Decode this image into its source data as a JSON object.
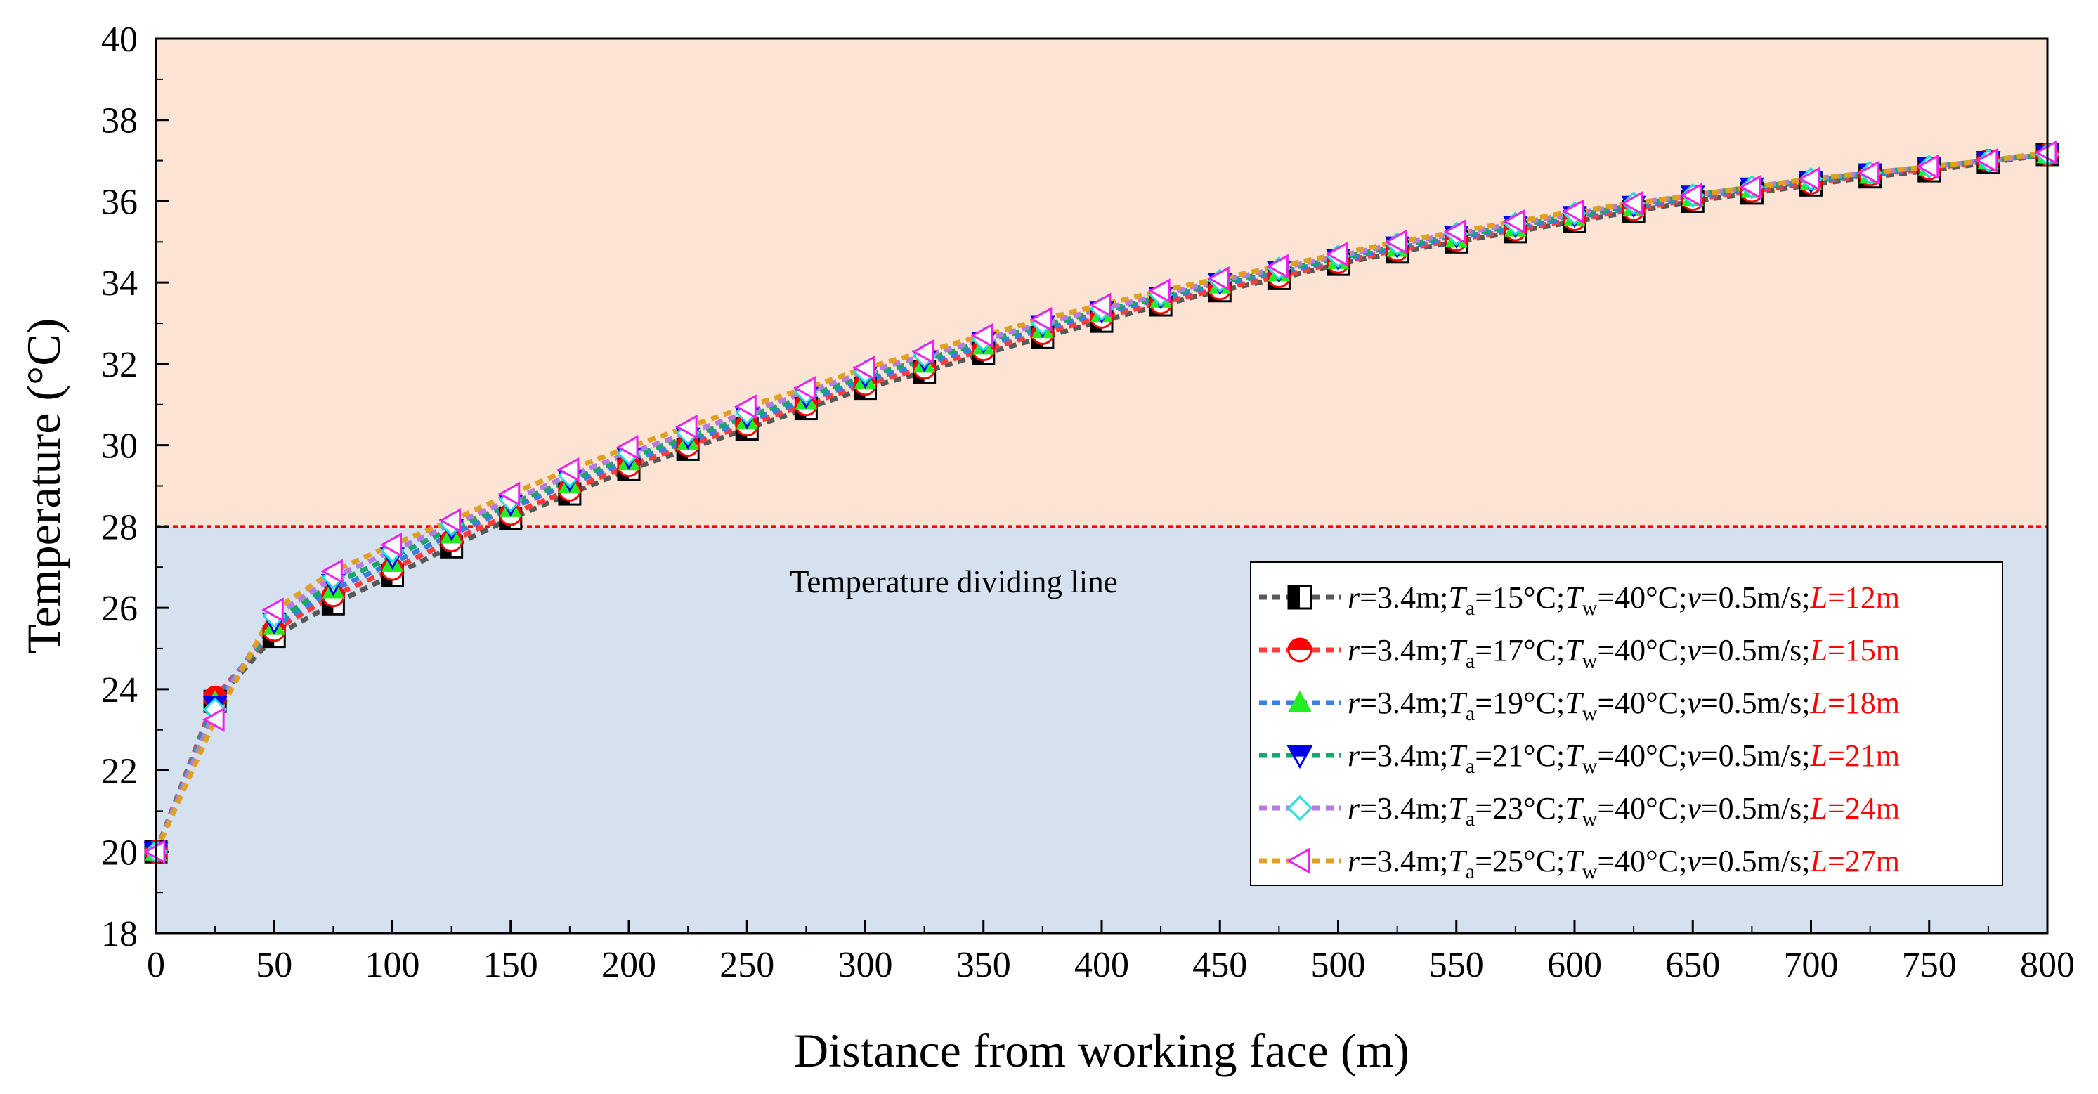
{
  "chart_data": {
    "type": "line",
    "xlabel": "Distance from working face (m)",
    "ylabel": "Temperature (°C)",
    "xlim": [
      0,
      800
    ],
    "ylim": [
      18,
      40
    ],
    "xticks": [
      0,
      50,
      100,
      150,
      200,
      250,
      300,
      350,
      400,
      450,
      500,
      550,
      600,
      650,
      700,
      750,
      800
    ],
    "yticks": [
      18,
      20,
      22,
      24,
      26,
      28,
      30,
      32,
      34,
      36,
      38,
      40
    ],
    "threshold": {
      "value": 28,
      "label": "Temperature dividing line",
      "color": "#ff0000"
    },
    "regions": {
      "above_color": "#fce4d4",
      "below_color": "#d6e1f0"
    },
    "x": [
      0,
      25,
      50,
      75,
      100,
      125,
      150,
      175,
      200,
      225,
      250,
      275,
      300,
      325,
      350,
      375,
      400,
      425,
      450,
      475,
      500,
      525,
      550,
      575,
      600,
      625,
      650,
      675,
      700,
      725,
      750,
      775,
      800
    ],
    "series": [
      {
        "legend": {
          "r": "r",
          "r_val": "=3.4m;",
          "ta": "T",
          "ta_sub": "a",
          "ta_val": "=15°C;",
          "tw": "T",
          "tw_sub": "w",
          "tw_val": "=40°C;",
          "v": "v",
          "v_val": "=0.5m/s;",
          "l": "L",
          "l_val": "=12m"
        },
        "line_color": "#595959",
        "marker": "square-half",
        "marker_color": "#000000",
        "values": [
          20.0,
          23.7,
          25.3,
          26.1,
          26.8,
          27.5,
          28.2,
          28.8,
          29.4,
          29.9,
          30.4,
          30.9,
          31.4,
          31.8,
          32.25,
          32.65,
          33.05,
          33.45,
          33.8,
          34.1,
          34.45,
          34.75,
          35.0,
          35.25,
          35.5,
          35.75,
          36.0,
          36.2,
          36.4,
          36.6,
          36.75,
          36.95,
          37.15
        ]
      },
      {
        "legend": {
          "r": "r",
          "r_val": "=3.4m;",
          "ta": "T",
          "ta_sub": "a",
          "ta_val": "=17°C;",
          "tw": "T",
          "tw_sub": "w",
          "tw_val": "=40°C;",
          "v": "v",
          "v_val": "=0.5m/s;",
          "l": "L",
          "l_val": "=15m"
        },
        "line_color": "#ff3b3b",
        "marker": "circle-half",
        "marker_color": "#ff0000",
        "values": [
          20.0,
          23.8,
          25.45,
          26.3,
          26.95,
          27.65,
          28.3,
          28.9,
          29.5,
          30.0,
          30.5,
          31.0,
          31.5,
          31.9,
          32.35,
          32.75,
          33.15,
          33.5,
          33.85,
          34.15,
          34.5,
          34.8,
          35.05,
          35.3,
          35.55,
          35.8,
          36.05,
          36.25,
          36.45,
          36.65,
          36.8,
          37.0,
          37.15
        ]
      },
      {
        "legend": {
          "r": "r",
          "r_val": "=3.4m;",
          "ta": "T",
          "ta_sub": "a",
          "ta_val": "=19°C;",
          "tw": "T",
          "tw_sub": "w",
          "tw_val": "=40°C;",
          "v": "v",
          "v_val": "=0.5m/s;",
          "l": "L",
          "l_val": "=18m"
        },
        "line_color": "#3a7ee0",
        "marker": "triangle-up",
        "marker_color": "#22ee22",
        "values": [
          20.0,
          23.7,
          25.55,
          26.45,
          27.1,
          27.8,
          28.45,
          29.05,
          29.6,
          30.1,
          30.6,
          31.1,
          31.6,
          32.0,
          32.45,
          32.85,
          33.25,
          33.6,
          33.95,
          34.25,
          34.55,
          34.85,
          35.1,
          35.35,
          35.6,
          35.85,
          36.1,
          36.3,
          36.5,
          36.65,
          36.85,
          37.0,
          37.15
        ]
      },
      {
        "legend": {
          "r": "r",
          "r_val": "=3.4m;",
          "ta": "T",
          "ta_sub": "a",
          "ta_val": "=21°C;",
          "tw": "T",
          "tw_sub": "w",
          "tw_val": "=40°C;",
          "v": "v",
          "v_val": "=0.5m/s;",
          "l": "L",
          "l_val": "=21m"
        },
        "line_color": "#1aa56a",
        "marker": "triangle-down-half",
        "marker_color": "#0000ee",
        "values": [
          20.0,
          23.6,
          25.65,
          26.6,
          27.25,
          27.95,
          28.55,
          29.15,
          29.7,
          30.2,
          30.7,
          31.2,
          31.7,
          32.1,
          32.55,
          32.95,
          33.3,
          33.65,
          34.0,
          34.3,
          34.6,
          34.9,
          35.15,
          35.4,
          35.65,
          35.9,
          36.15,
          36.35,
          36.5,
          36.7,
          36.85,
          37.0,
          37.15
        ]
      },
      {
        "legend": {
          "r": "r",
          "r_val": "=3.4m;",
          "ta": "T",
          "ta_sub": "a",
          "ta_val": "=23°C;",
          "tw": "T",
          "tw_sub": "w",
          "tw_val": "=40°C;",
          "v": "v",
          "v_val": "=0.5m/s;",
          "l": "L",
          "l_val": "=24m"
        },
        "line_color": "#b57be0",
        "marker": "diamond",
        "marker_color": "#22dddd",
        "values": [
          20.0,
          23.5,
          25.8,
          26.75,
          27.4,
          28.05,
          28.65,
          29.25,
          29.8,
          30.3,
          30.8,
          31.3,
          31.8,
          32.2,
          32.6,
          33.0,
          33.35,
          33.7,
          34.05,
          34.35,
          34.65,
          34.95,
          35.2,
          35.45,
          35.7,
          35.95,
          36.15,
          36.35,
          36.55,
          36.7,
          36.85,
          37.0,
          37.15
        ]
      },
      {
        "legend": {
          "r": "r",
          "r_val": "=3.4m;",
          "ta": "T",
          "ta_sub": "a",
          "ta_val": "=25°C;",
          "tw": "T",
          "tw_sub": "w",
          "tw_val": "=40°C;",
          "v": "v",
          "v_val": "=0.5m/s;",
          "l": "L",
          "l_val": "=27m"
        },
        "line_color": "#e0a020",
        "marker": "triangle-left",
        "marker_color": "#ee22ee",
        "values": [
          20.0,
          23.25,
          25.95,
          26.9,
          27.55,
          28.15,
          28.8,
          29.4,
          29.95,
          30.45,
          30.95,
          31.4,
          31.9,
          32.3,
          32.7,
          33.1,
          33.45,
          33.8,
          34.1,
          34.4,
          34.7,
          35.0,
          35.25,
          35.5,
          35.75,
          35.95,
          36.15,
          36.35,
          36.55,
          36.7,
          36.85,
          37.0,
          37.2
        ]
      }
    ]
  }
}
